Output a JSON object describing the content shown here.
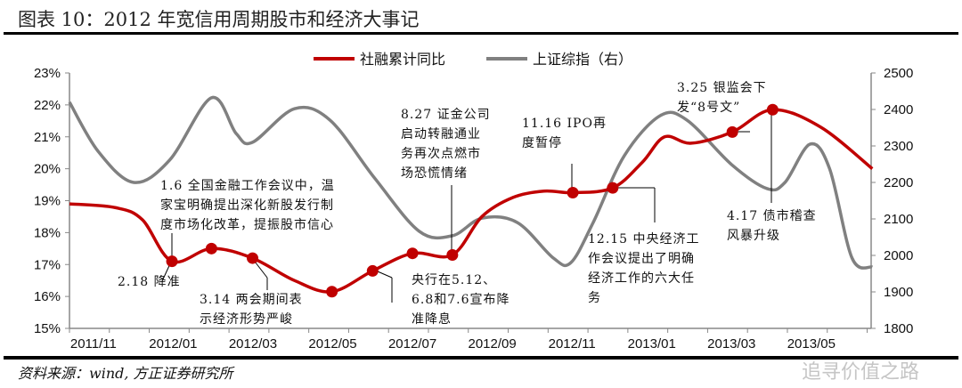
{
  "title": "图表 10：2012 年宽信用周期股市和经济大事记",
  "source": "资料来源：wind, 方正证券研究所",
  "watermark": "追寻价值之路",
  "chart_data": {
    "type": "line",
    "x_unit": "months since 2011/11",
    "xlim": [
      0,
      20.1
    ],
    "x_tick_labels": [
      "2011/11",
      "2012/01",
      "2012/03",
      "2012/05",
      "2012/07",
      "2012/09",
      "2012/11",
      "2013/01",
      "2013/03",
      "2013/05"
    ],
    "y_left": {
      "lim": [
        15,
        23
      ],
      "ticks": [
        "15%",
        "16%",
        "17%",
        "18%",
        "19%",
        "20%",
        "21%",
        "22%",
        "23%"
      ]
    },
    "y_right": {
      "lim": [
        1800,
        2500
      ],
      "ticks": [
        "1800",
        "1900",
        "2000",
        "2100",
        "2200",
        "2300",
        "2400",
        "2500"
      ]
    },
    "legend_position": "top",
    "series": [
      {
        "name": "社融累计同比",
        "axis": "left",
        "color": "#c00000",
        "x": [
          0,
          1.16,
          1.83,
          2.57,
          3.56,
          4.59,
          5.64,
          6.58,
          7.6,
          8.6,
          9.6,
          10.34,
          11.12,
          11.9,
          12.62,
          13.62,
          14.36,
          14.92,
          15.59,
          16.62,
          17.63,
          18.84,
          20.13
        ],
        "y": [
          18.9,
          18.78,
          18.4,
          17.1,
          17.5,
          17.2,
          16.5,
          16.15,
          16.8,
          17.35,
          17.3,
          18.5,
          19.1,
          19.3,
          19.25,
          19.4,
          20.2,
          21.0,
          20.8,
          21.15,
          21.85,
          21.3,
          20.0
        ],
        "markers": [
          3,
          4,
          5,
          7,
          8,
          9,
          10,
          14,
          15,
          19,
          20
        ]
      },
      {
        "name": "上证综指（右）",
        "axis": "right",
        "color": "#808080",
        "x": [
          0,
          0.72,
          1.61,
          2.51,
          3.56,
          4.18,
          4.59,
          5.64,
          6.53,
          7.65,
          8.77,
          9.6,
          10.34,
          11.23,
          12.13,
          12.57,
          13.13,
          13.91,
          14.81,
          15.48,
          16.6,
          17.49,
          17.94,
          18.57,
          19.06,
          19.62,
          20.13
        ],
        "y": [
          2420,
          2285,
          2200,
          2261,
          2432,
          2334,
          2310,
          2402,
          2371,
          2212,
          2066,
          2054,
          2102,
          2090,
          1993,
          1980,
          2090,
          2273,
          2383,
          2371,
          2249,
          2183,
          2200,
          2305,
          2237,
          1993,
          1968
        ]
      }
    ],
    "annotations": [
      {
        "text": "1.6 全国金融工作会议中，温\n家宝明确提出深化新股发行制\n度市场化改革，提振股市信心"
      },
      {
        "text": "2.18 降准"
      },
      {
        "text": "3.14 两会期间表\n示经济形势严峻"
      },
      {
        "text": "央行在5.12、\n6.8和7.6宣布降\n准降息"
      },
      {
        "text": "8.27 证金公司\n启动转融通业\n务再次点燃市\n场恐慌情绪"
      },
      {
        "text": "11.16 IPO再\n度暂停"
      },
      {
        "text": "12.15 中央经济工\n作会议提出了明确\n经济工作的六大任\n务"
      },
      {
        "text": "3.25 银监会下\n发“8号文”"
      },
      {
        "text": "4.17 债市稽查\n风暴升级"
      }
    ]
  }
}
